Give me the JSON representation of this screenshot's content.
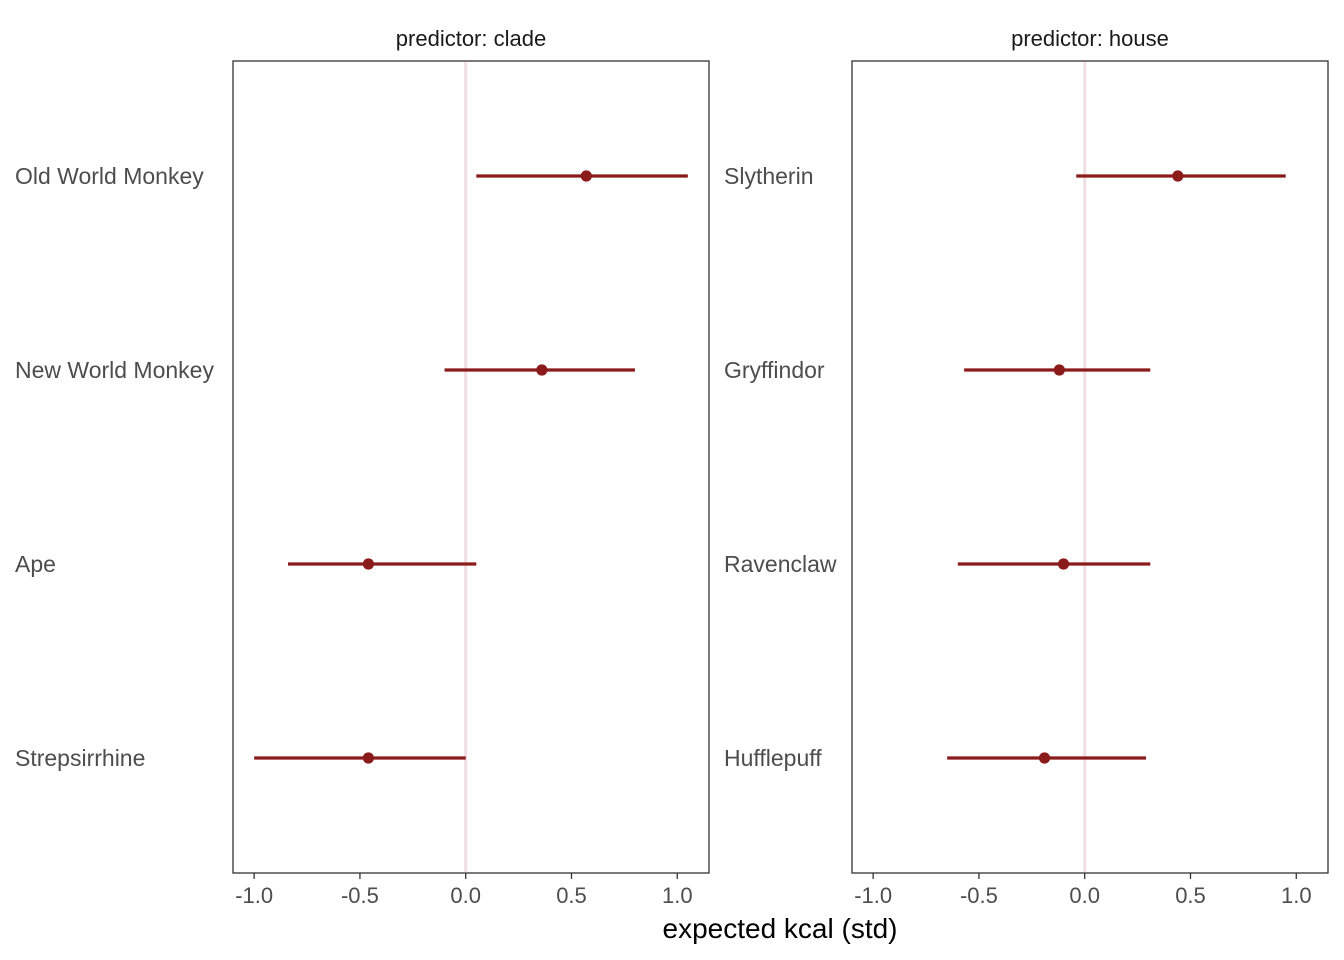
{
  "chart_data": {
    "type": "scatter",
    "subtype": "pointrange",
    "xlabel": "expected kcal (std)",
    "xlim": [
      -1.1,
      1.15
    ],
    "xticks": [
      -1.0,
      -0.5,
      0.0,
      0.5,
      1.0
    ],
    "xtick_labels": [
      "-1.0",
      "-0.5",
      "0.0",
      "0.5",
      "1.0"
    ],
    "reference_line_x": 0,
    "colors": {
      "point": "#8b1a1a",
      "reference": "#f2dde3",
      "frame": "#333333"
    },
    "grid": false,
    "legend": "none",
    "panels": [
      {
        "title": "predictor: clade",
        "categories": [
          "Old World Monkey",
          "New World Monkey",
          "Ape",
          "Strepsirrhine"
        ],
        "estimates": [
          0.57,
          0.36,
          -0.46,
          -0.46
        ],
        "lower": [
          0.05,
          -0.1,
          -0.84,
          -1.0
        ],
        "upper": [
          1.05,
          0.8,
          0.05,
          0.0
        ]
      },
      {
        "title": "predictor: house",
        "categories": [
          "Slytherin",
          "Gryffindor",
          "Ravenclaw",
          "Hufflepuff"
        ],
        "estimates": [
          0.44,
          -0.12,
          -0.1,
          -0.19
        ],
        "lower": [
          -0.04,
          -0.57,
          -0.6,
          -0.65
        ],
        "upper": [
          0.95,
          0.31,
          0.31,
          0.29
        ]
      }
    ]
  }
}
